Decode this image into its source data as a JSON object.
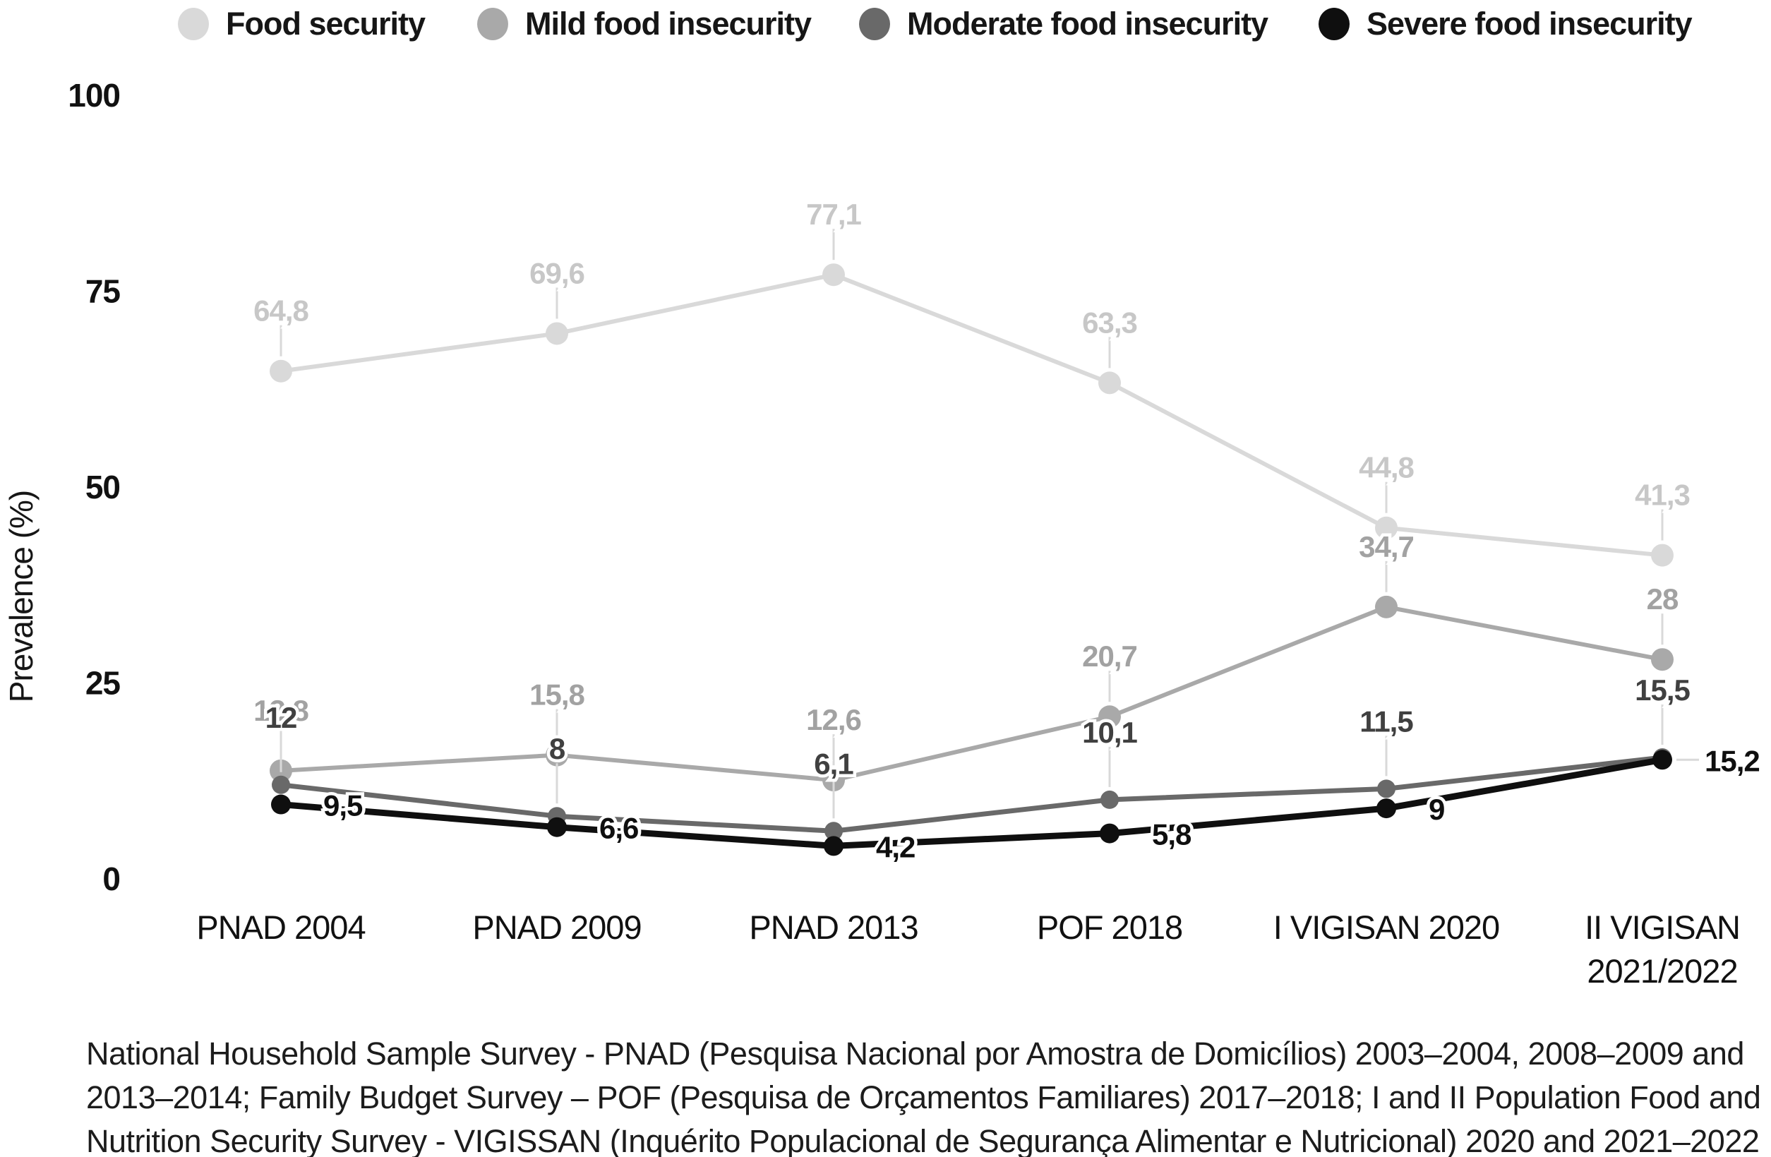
{
  "chart_data": {
    "type": "line",
    "title": "",
    "xlabel": "",
    "ylabel": "Prevalence (%)",
    "ylim": [
      0,
      100
    ],
    "yticks": [
      "100",
      "75",
      "50",
      "25",
      "0"
    ],
    "ytick_values": [
      100,
      75,
      50,
      25,
      0
    ],
    "grid": false,
    "legend_position": "top",
    "decimal_separator": ",",
    "categories": [
      "PNAD 2004",
      "PNAD 2009",
      "PNAD 2013",
      "POF 2018",
      "I VIGISAN 2020",
      "II VIGISAN\n2021/2022"
    ],
    "series": [
      {
        "name": "Food security",
        "color": "#d9d9d9",
        "label_color": "#c7c7c7",
        "values": [
          64.8,
          69.6,
          77.1,
          63.3,
          44.8,
          41.3
        ],
        "labels": [
          "64,8",
          "69,6",
          "77,1",
          "63,3",
          "44,8",
          "41,3"
        ]
      },
      {
        "name": "Mild food insecurity",
        "color": "#a9a9a9",
        "label_color": "#a2a2a2",
        "values": [
          13.8,
          15.8,
          12.6,
          20.7,
          34.7,
          28
        ],
        "labels": [
          "13,8",
          "15,8",
          "12,6",
          "20,7",
          "34,7",
          "28"
        ]
      },
      {
        "name": "Moderate food insecurity",
        "color": "#696969",
        "label_color": "#404040",
        "values": [
          12,
          8,
          6.1,
          10.1,
          11.5,
          15.5
        ],
        "labels": [
          "12",
          "8",
          "6,1",
          "10,1",
          "11,5",
          "15,5"
        ]
      },
      {
        "name": "Severe food insecurity",
        "color": "#0f0f0f",
        "label_color": "#0f0f0f",
        "values": [
          9.5,
          6.6,
          4.2,
          5.8,
          9,
          15.2
        ],
        "labels": [
          "9,5",
          "6,6",
          "4,2",
          "5,8",
          "9",
          "15,2"
        ]
      }
    ],
    "connector_color": "#d9d9d9"
  },
  "footnote": {
    "lines": [
      "National Household Sample Survey - PNAD (Pesquisa Nacional por Amostra de Domicílios) 2003–2004, 2008–2009 and",
      "2013–2014; Family Budget Survey – POF (Pesquisa de Orçamentos Familiares) 2017–2018; I and II Population Food and",
      "Nutrition Security Survey - VIGISSAN (Inquérito Populacional de Segurança Alimentar e Nutricional) 2020 and 2021–2022"
    ]
  }
}
